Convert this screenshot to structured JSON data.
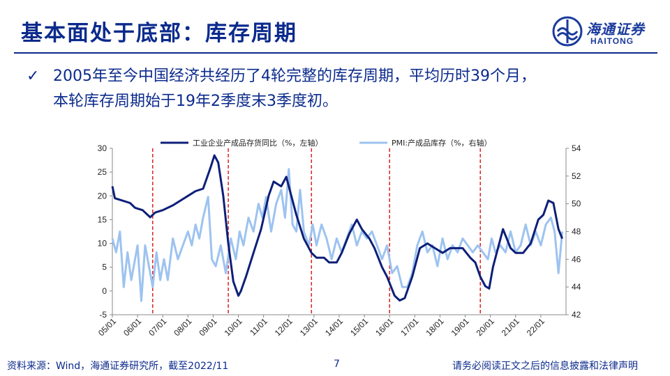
{
  "header": {
    "title": "基本面处于底部：库存周期",
    "logo_cn": "海通证券",
    "logo_en": "HAITONG"
  },
  "bullet": {
    "line1": "2005年至今中国经济共经历了4轮完整的库存周期，平均历时39个月，",
    "line2": "本轮库存周期始于19年2季度末3季度初。"
  },
  "footer": {
    "source": "资料来源：Wind，海通证券研究所，截至2022/11",
    "page": "7",
    "disclaimer": "请务必阅读正文之后的信息披露和法律声明"
  },
  "colors": {
    "title": "#0b2a8c",
    "series1": "#0d1f78",
    "series2": "#9dc3f0",
    "cycle_line": "#e02020"
  },
  "chart_data": {
    "type": "line",
    "x_tick_labels": [
      "05/01",
      "06/01",
      "07/01",
      "08/01",
      "09/01",
      "10/01",
      "11/01",
      "12/01",
      "13/01",
      "14/01",
      "15/01",
      "16/01",
      "17/01",
      "18/01",
      "19/01",
      "20/01",
      "21/01",
      "22/01"
    ],
    "x_range": [
      2005.0,
      2023.0
    ],
    "y_left": {
      "ticks": [
        -5,
        0,
        5,
        10,
        15,
        20,
        25,
        30
      ],
      "range": [
        -5,
        30
      ]
    },
    "y_right": {
      "ticks": [
        42,
        44,
        46,
        48,
        50,
        52,
        54
      ],
      "range": [
        42,
        54
      ]
    },
    "cycle_boundaries": [
      2006.6,
      2009.6,
      2012.9,
      2016.0,
      2019.6
    ],
    "series": [
      {
        "name": "工业企业产成品存货同比（%，左轴）",
        "axis": "left",
        "points": [
          [
            2005.0,
            22
          ],
          [
            2005.1,
            19.5
          ],
          [
            2005.4,
            19
          ],
          [
            2005.7,
            18.5
          ],
          [
            2005.9,
            17.5
          ],
          [
            2006.2,
            17
          ],
          [
            2006.5,
            15.5
          ],
          [
            2006.7,
            16.5
          ],
          [
            2007.0,
            17
          ],
          [
            2007.4,
            18
          ],
          [
            2007.7,
            19
          ],
          [
            2008.0,
            20
          ],
          [
            2008.3,
            21
          ],
          [
            2008.6,
            21.5
          ],
          [
            2008.9,
            26
          ],
          [
            2009.05,
            28.5
          ],
          [
            2009.2,
            27
          ],
          [
            2009.4,
            20
          ],
          [
            2009.6,
            10
          ],
          [
            2009.8,
            2
          ],
          [
            2010.0,
            -1
          ],
          [
            2010.1,
            0
          ],
          [
            2010.3,
            3
          ],
          [
            2010.6,
            8
          ],
          [
            2010.9,
            13
          ],
          [
            2011.2,
            20
          ],
          [
            2011.4,
            23
          ],
          [
            2011.7,
            22
          ],
          [
            2011.9,
            24
          ],
          [
            2012.1,
            20
          ],
          [
            2012.3,
            16
          ],
          [
            2012.6,
            11
          ],
          [
            2012.9,
            8
          ],
          [
            2013.1,
            7
          ],
          [
            2013.4,
            7
          ],
          [
            2013.6,
            6
          ],
          [
            2013.9,
            6
          ],
          [
            2014.1,
            8
          ],
          [
            2014.4,
            12
          ],
          [
            2014.7,
            15
          ],
          [
            2014.9,
            13
          ],
          [
            2015.2,
            11
          ],
          [
            2015.4,
            9
          ],
          [
            2015.7,
            5
          ],
          [
            2015.9,
            3
          ],
          [
            2016.2,
            -1
          ],
          [
            2016.4,
            -2
          ],
          [
            2016.6,
            -1.5
          ],
          [
            2016.9,
            3
          ],
          [
            2017.2,
            9
          ],
          [
            2017.5,
            10
          ],
          [
            2017.8,
            9
          ],
          [
            2018.1,
            8
          ],
          [
            2018.4,
            9
          ],
          [
            2018.7,
            9
          ],
          [
            2018.9,
            9
          ],
          [
            2019.2,
            7
          ],
          [
            2019.4,
            6
          ],
          [
            2019.6,
            3
          ],
          [
            2019.8,
            1
          ],
          [
            2019.95,
            0.5
          ],
          [
            2020.1,
            5
          ],
          [
            2020.3,
            9
          ],
          [
            2020.5,
            13
          ],
          [
            2020.8,
            9
          ],
          [
            2021.0,
            8
          ],
          [
            2021.3,
            8
          ],
          [
            2021.6,
            10
          ],
          [
            2021.9,
            15
          ],
          [
            2022.1,
            16
          ],
          [
            2022.3,
            19
          ],
          [
            2022.5,
            18.5
          ],
          [
            2022.7,
            13
          ],
          [
            2022.85,
            11
          ]
        ]
      },
      {
        "name": "PMI:产成品库存（%，右轴）",
        "axis": "right",
        "points": [
          [
            2005.0,
            47.5
          ],
          [
            2005.15,
            46.5
          ],
          [
            2005.3,
            48
          ],
          [
            2005.45,
            44
          ],
          [
            2005.6,
            46.5
          ],
          [
            2005.75,
            44.5
          ],
          [
            2005.9,
            46
          ],
          [
            2006.0,
            47
          ],
          [
            2006.15,
            43
          ],
          [
            2006.3,
            47
          ],
          [
            2006.45,
            45.5
          ],
          [
            2006.6,
            44
          ],
          [
            2006.75,
            46.5
          ],
          [
            2006.9,
            44.5
          ],
          [
            2007.05,
            46
          ],
          [
            2007.2,
            44.5
          ],
          [
            2007.4,
            47.5
          ],
          [
            2007.6,
            46
          ],
          [
            2007.8,
            47
          ],
          [
            2008.0,
            48
          ],
          [
            2008.15,
            47
          ],
          [
            2008.3,
            48.5
          ],
          [
            2008.45,
            47.5
          ],
          [
            2008.6,
            49
          ],
          [
            2008.8,
            50.5
          ],
          [
            2008.95,
            46
          ],
          [
            2009.1,
            45.5
          ],
          [
            2009.3,
            47
          ],
          [
            2009.5,
            45
          ],
          [
            2009.7,
            47.5
          ],
          [
            2009.9,
            46
          ],
          [
            2010.05,
            48
          ],
          [
            2010.2,
            47
          ],
          [
            2010.4,
            49
          ],
          [
            2010.6,
            48
          ],
          [
            2010.8,
            50
          ],
          [
            2010.95,
            49
          ],
          [
            2011.1,
            50.5
          ],
          [
            2011.3,
            48
          ],
          [
            2011.5,
            50
          ],
          [
            2011.7,
            51
          ],
          [
            2011.85,
            49
          ],
          [
            2012.0,
            52.5
          ],
          [
            2012.15,
            48.5
          ],
          [
            2012.3,
            48
          ],
          [
            2012.45,
            51
          ],
          [
            2012.6,
            48
          ],
          [
            2012.8,
            47
          ],
          [
            2012.95,
            48.5
          ],
          [
            2013.1,
            47
          ],
          [
            2013.3,
            48.5
          ],
          [
            2013.5,
            47.5
          ],
          [
            2013.7,
            46
          ],
          [
            2013.9,
            47.5
          ],
          [
            2014.1,
            46.5
          ],
          [
            2014.3,
            47.5
          ],
          [
            2014.5,
            48.5
          ],
          [
            2014.7,
            47
          ],
          [
            2014.9,
            48
          ],
          [
            2015.1,
            47.5
          ],
          [
            2015.3,
            48
          ],
          [
            2015.5,
            47
          ],
          [
            2015.7,
            46
          ],
          [
            2015.9,
            47
          ],
          [
            2016.1,
            45
          ],
          [
            2016.3,
            45.5
          ],
          [
            2016.5,
            44
          ],
          [
            2016.7,
            44
          ],
          [
            2016.9,
            45
          ],
          [
            2017.1,
            47
          ],
          [
            2017.3,
            48
          ],
          [
            2017.5,
            46.5
          ],
          [
            2017.7,
            47
          ],
          [
            2017.9,
            45.5
          ],
          [
            2018.1,
            47.5
          ],
          [
            2018.3,
            46
          ],
          [
            2018.5,
            47
          ],
          [
            2018.7,
            46.5
          ],
          [
            2018.9,
            47.5
          ],
          [
            2019.1,
            47
          ],
          [
            2019.3,
            46.5
          ],
          [
            2019.5,
            47
          ],
          [
            2019.7,
            46.5
          ],
          [
            2019.9,
            46
          ],
          [
            2020.05,
            47.5
          ],
          [
            2020.2,
            46.5
          ],
          [
            2020.4,
            47
          ],
          [
            2020.6,
            46.5
          ],
          [
            2020.8,
            48
          ],
          [
            2021.0,
            46.5
          ],
          [
            2021.2,
            47
          ],
          [
            2021.4,
            48.5
          ],
          [
            2021.6,
            47
          ],
          [
            2021.8,
            48
          ],
          [
            2022.0,
            47
          ],
          [
            2022.2,
            48.5
          ],
          [
            2022.4,
            49
          ],
          [
            2022.55,
            48
          ],
          [
            2022.7,
            45
          ],
          [
            2022.85,
            48
          ]
        ]
      }
    ]
  }
}
